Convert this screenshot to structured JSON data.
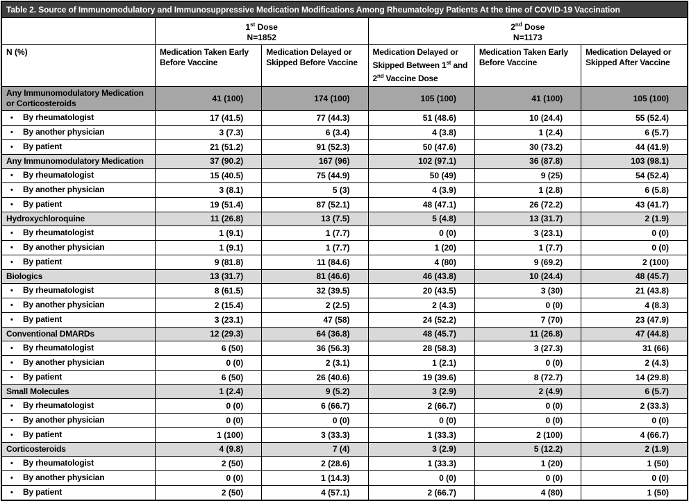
{
  "title": "Table 2. Source of Immunomodulatory and Immunosuppressive Medication Modifications Among Rheumatology Patients At the time of COVID-19 Vaccination",
  "colors": {
    "title_bg": "#3f3f3f",
    "category_dark_bg": "#a6a6a6",
    "category_bg": "#d9d9d9",
    "border": "#000000"
  },
  "header": {
    "row_label": "N (%)",
    "dose_groups": [
      {
        "label": "1^{st} Dose",
        "n": "N=1852",
        "span": 2
      },
      {
        "label": "2^{nd} Dose",
        "n": "N=1173",
        "span": 3
      }
    ],
    "columns": [
      "Medication Taken Early Before Vaccine",
      "Medication Delayed or Skipped Before Vaccine",
      "Medication Delayed or Skipped Between 1^{st} and 2^{nd} Vaccine Dose",
      "Medication Taken Early Before Vaccine",
      "Medication Delayed or Skipped After Vaccine"
    ]
  },
  "rows": [
    {
      "label": "Any Immunomodulatory Medication or Corticosteroids",
      "type": "category-dark",
      "values": [
        "41 (100)",
        "174 (100)",
        "105 (100)",
        "41 (100)",
        "105 (100)"
      ]
    },
    {
      "label": "By rheumatologist",
      "type": "sub",
      "values": [
        "17 (41.5)",
        "77 (44.3)",
        "51 (48.6)",
        "10 (24.4)",
        "55 (52.4)"
      ]
    },
    {
      "label": "By another physician",
      "type": "sub",
      "values": [
        "3 (7.3)",
        "6 (3.4)",
        "4 (3.8)",
        "1 (2.4)",
        "6 (5.7)"
      ]
    },
    {
      "label": "By patient",
      "type": "sub",
      "values": [
        "21 (51.2)",
        "91 (52.3)",
        "50 (47.6)",
        "30 (73.2)",
        "44 (41.9)"
      ]
    },
    {
      "label": "Any Immunomodulatory Medication",
      "type": "category",
      "values": [
        "37 (90.2)",
        "167 (96)",
        "102 (97.1)",
        "36 (87.8)",
        "103 (98.1)"
      ]
    },
    {
      "label": "By rheumatologist",
      "type": "sub",
      "values": [
        "15 (40.5)",
        "75 (44.9)",
        "50 (49)",
        "9 (25)",
        "54 (52.4)"
      ]
    },
    {
      "label": "By another physician",
      "type": "sub",
      "values": [
        "3 (8.1)",
        "5 (3)",
        "4 (3.9)",
        "1 (2.8)",
        "6 (5.8)"
      ]
    },
    {
      "label": "By patient",
      "type": "sub",
      "values": [
        "19 (51.4)",
        "87 (52.1)",
        "48 (47.1)",
        "26 (72.2)",
        "43 (41.7)"
      ]
    },
    {
      "label": "Hydroxychloroquine",
      "type": "category",
      "values": [
        "11 (26.8)",
        "13 (7.5)",
        "5 (4.8)",
        "13 (31.7)",
        "2 (1.9)"
      ]
    },
    {
      "label": "By rheumatologist",
      "type": "sub",
      "values": [
        "1 (9.1)",
        "1 (7.7)",
        "0 (0)",
        "3 (23.1)",
        "0 (0)"
      ]
    },
    {
      "label": "By another physician",
      "type": "sub",
      "values": [
        "1 (9.1)",
        "1 (7.7)",
        "1 (20)",
        "1 (7.7)",
        "0 (0)"
      ]
    },
    {
      "label": "By patient",
      "type": "sub",
      "values": [
        "9 (81.8)",
        "11 (84.6)",
        "4 (80)",
        "9 (69.2)",
        "2 (100)"
      ]
    },
    {
      "label": "Biologics",
      "type": "category",
      "values": [
        "13 (31.7)",
        "81 (46.6)",
        "46 (43.8)",
        "10 (24.4)",
        "48 (45.7)"
      ]
    },
    {
      "label": "By rheumatologist",
      "type": "sub",
      "values": [
        "8 (61.5)",
        "32 (39.5)",
        "20 (43.5)",
        "3 (30)",
        "21 (43.8)"
      ]
    },
    {
      "label": "By another physician",
      "type": "sub",
      "values": [
        "2 (15.4)",
        "2 (2.5)",
        "2 (4.3)",
        "0 (0)",
        "4 (8.3)"
      ]
    },
    {
      "label": "By patient",
      "type": "sub",
      "values": [
        "3 (23.1)",
        "47 (58)",
        "24 (52.2)",
        "7 (70)",
        "23 (47.9)"
      ]
    },
    {
      "label": "Conventional DMARDs",
      "type": "category",
      "values": [
        "12 (29.3)",
        "64 (36.8)",
        "48 (45.7)",
        "11 (26.8)",
        "47 (44.8)"
      ]
    },
    {
      "label": "By rheumatologist",
      "type": "sub",
      "values": [
        "6 (50)",
        "36 (56.3)",
        "28 (58.3)",
        "3 (27.3)",
        "31 (66)"
      ]
    },
    {
      "label": "By another physician",
      "type": "sub",
      "values": [
        "0 (0)",
        "2 (3.1)",
        "1 (2.1)",
        "0 (0)",
        "2 (4.3)"
      ]
    },
    {
      "label": "By patient",
      "type": "sub",
      "values": [
        "6 (50)",
        "26 (40.6)",
        "19 (39.6)",
        "8 (72.7)",
        "14 (29.8)"
      ]
    },
    {
      "label": "Small Molecules",
      "type": "category",
      "values": [
        "1 (2.4)",
        "9 (5.2)",
        "3 (2.9)",
        "2 (4.9)",
        "6 (5.7)"
      ]
    },
    {
      "label": "By rheumatologist",
      "type": "sub",
      "values": [
        "0 (0)",
        "6 (66.7)",
        "2 (66.7)",
        "0 (0)",
        "2 (33.3)"
      ]
    },
    {
      "label": "By another physician",
      "type": "sub",
      "values": [
        "0 (0)",
        "0 (0)",
        "0 (0)",
        "0 (0)",
        "0 (0)"
      ]
    },
    {
      "label": "By patient",
      "type": "sub",
      "values": [
        "1 (100)",
        "3 (33.3)",
        "1 (33.3)",
        "2 (100)",
        "4 (66.7)"
      ]
    },
    {
      "label": "Corticosteroids",
      "type": "category",
      "values": [
        "4 (9.8)",
        "7 (4)",
        "3 (2.9)",
        "5 (12.2)",
        "2 (1.9)"
      ]
    },
    {
      "label": "By rheumatologist",
      "type": "sub",
      "values": [
        "2 (50)",
        "2 (28.6)",
        "1 (33.3)",
        "1 (20)",
        "1 (50)"
      ]
    },
    {
      "label": "By another physician",
      "type": "sub",
      "values": [
        "0 (0)",
        "1 (14.3)",
        "0 (0)",
        "0 (0)",
        "0 (0)"
      ]
    },
    {
      "label": "By patient",
      "type": "sub",
      "values": [
        "2 (50)",
        "4 (57.1)",
        "2 (66.7)",
        "4 (80)",
        "1 (50)"
      ]
    }
  ]
}
